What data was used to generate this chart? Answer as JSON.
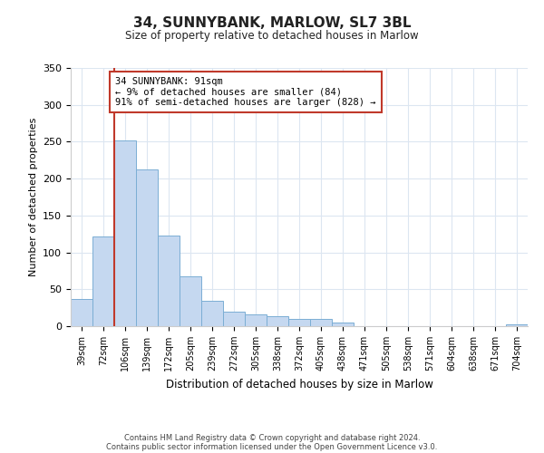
{
  "title": "34, SUNNYBANK, MARLOW, SL7 3BL",
  "subtitle": "Size of property relative to detached houses in Marlow",
  "xlabel": "Distribution of detached houses by size in Marlow",
  "ylabel": "Number of detached properties",
  "categories": [
    "39sqm",
    "72sqm",
    "106sqm",
    "139sqm",
    "172sqm",
    "205sqm",
    "239sqm",
    "272sqm",
    "305sqm",
    "338sqm",
    "372sqm",
    "405sqm",
    "438sqm",
    "471sqm",
    "505sqm",
    "538sqm",
    "571sqm",
    "604sqm",
    "638sqm",
    "671sqm",
    "704sqm"
  ],
  "values": [
    37,
    122,
    252,
    212,
    123,
    68,
    35,
    20,
    16,
    13,
    10,
    10,
    5,
    0,
    0,
    0,
    0,
    0,
    0,
    0,
    3
  ],
  "bar_color": "#c5d8f0",
  "bar_edge_color": "#7baed4",
  "vline_color": "#c0392b",
  "vline_pos": 1.5,
  "ylim": [
    0,
    350
  ],
  "yticks": [
    0,
    50,
    100,
    150,
    200,
    250,
    300,
    350
  ],
  "annotation_text": "34 SUNNYBANK: 91sqm\n← 9% of detached houses are smaller (84)\n91% of semi-detached houses are larger (828) →",
  "annotation_box_color": "#c0392b",
  "footer_line1": "Contains HM Land Registry data © Crown copyright and database right 2024.",
  "footer_line2": "Contains public sector information licensed under the Open Government Licence v3.0.",
  "bg_color": "#ffffff",
  "grid_color": "#dce6f1"
}
